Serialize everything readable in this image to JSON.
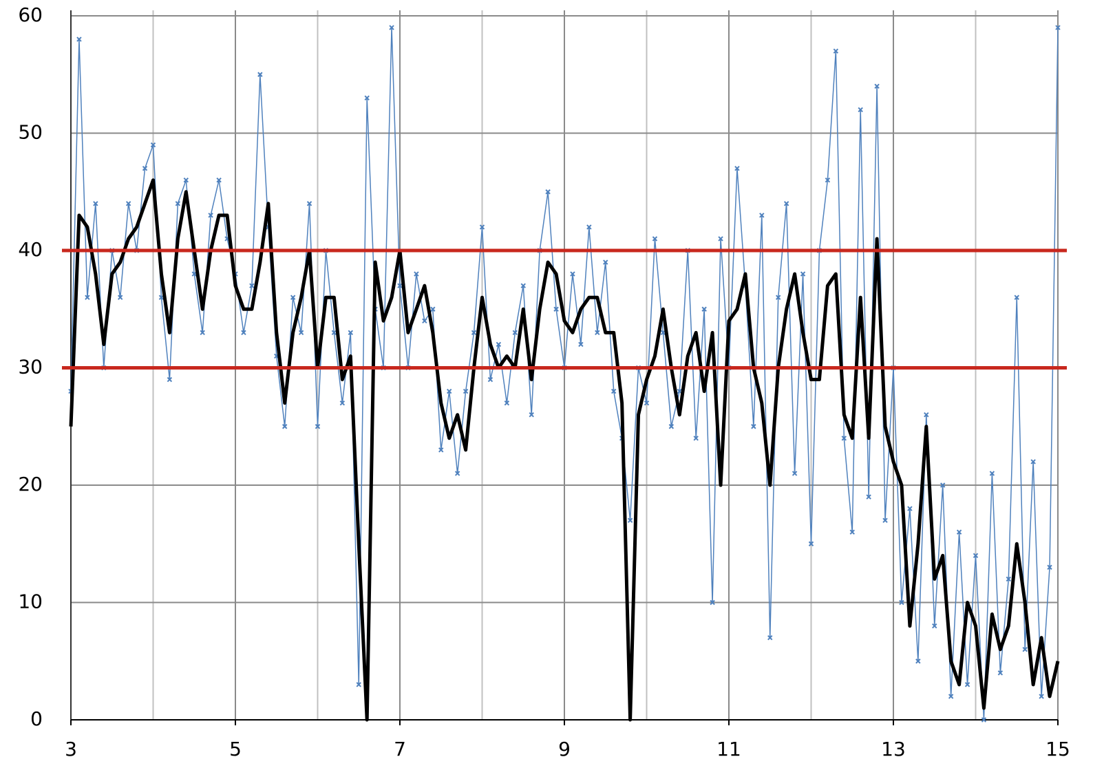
{
  "chart_data": {
    "type": "line",
    "x": [
      3,
      3.1,
      3.2,
      3.3,
      3.4,
      3.5,
      3.6,
      3.7,
      3.8,
      3.9,
      4,
      4.1,
      4.2,
      4.3,
      4.4,
      4.5,
      4.6,
      4.7,
      4.8,
      4.9,
      5,
      5.1,
      5.2,
      5.3,
      5.4,
      5.5,
      5.6,
      5.7,
      5.8,
      5.9,
      6,
      6.1,
      6.2,
      6.3,
      6.4,
      6.5,
      6.6,
      6.7,
      6.8,
      6.9,
      7,
      7.1,
      7.2,
      7.3,
      7.4,
      7.5,
      7.6,
      7.7,
      7.8,
      7.9,
      8,
      8.1,
      8.2,
      8.3,
      8.4,
      8.5,
      8.6,
      8.7,
      8.8,
      8.9,
      9,
      9.1,
      9.2,
      9.3,
      9.4,
      9.5,
      9.6,
      9.7,
      9.8,
      9.9,
      10,
      10.1,
      10.2,
      10.3,
      10.4,
      10.5,
      10.6,
      10.7,
      10.8,
      10.9,
      11,
      11.1,
      11.2,
      11.3,
      11.4,
      11.5,
      11.6,
      11.7,
      11.8,
      11.9,
      12,
      12.1,
      12.2,
      12.3,
      12.4,
      12.5,
      12.6,
      12.7,
      12.8,
      12.9,
      13,
      13.1,
      13.2,
      13.3,
      13.4,
      13.5,
      13.6,
      13.7,
      13.8,
      13.9,
      14,
      14.1,
      14.2,
      14.3,
      14.4,
      14.5,
      14.6,
      14.7,
      14.8,
      14.9,
      15
    ],
    "series": [
      {
        "color": "#4f81bd",
        "markers": true,
        "width": 1.5,
        "values": [
          28,
          58,
          36,
          44,
          30,
          40,
          36,
          44,
          40,
          47,
          49,
          36,
          29,
          44,
          46,
          38,
          33,
          43,
          46,
          41,
          38,
          33,
          37,
          55,
          42,
          31,
          25,
          36,
          33,
          44,
          25,
          40,
          33,
          27,
          33,
          3,
          53,
          35,
          30,
          59,
          37,
          30,
          38,
          34,
          35,
          23,
          28,
          21,
          28,
          33,
          42,
          29,
          32,
          27,
          33,
          37,
          26,
          40,
          45,
          35,
          30,
          38,
          32,
          42,
          33,
          39,
          28,
          24,
          17,
          30,
          27,
          41,
          33,
          25,
          28,
          40,
          24,
          35,
          10,
          41,
          30,
          47,
          37,
          25,
          43,
          7,
          36,
          44,
          21,
          38,
          15,
          40,
          46,
          57,
          24,
          16,
          52,
          19,
          54,
          17,
          30,
          10,
          18,
          5,
          26,
          8,
          20,
          2,
          16,
          3,
          14,
          0,
          21,
          4,
          12,
          36,
          6,
          22,
          2,
          13,
          59
        ]
      },
      {
        "color": "#000000",
        "markers": false,
        "width": 5,
        "values": [
          25,
          43,
          42,
          38,
          32,
          38,
          39,
          41,
          42,
          44,
          46,
          38,
          33,
          41,
          45,
          40,
          35,
          40,
          43,
          43,
          37,
          35,
          35,
          39,
          44,
          33,
          27,
          33,
          36,
          40,
          30,
          36,
          36,
          29,
          31,
          15,
          0,
          39,
          34,
          36,
          40,
          33,
          35,
          37,
          33,
          27,
          24,
          26,
          23,
          30,
          36,
          32,
          30,
          31,
          30,
          35,
          29,
          35,
          39,
          38,
          34,
          33,
          35,
          36,
          36,
          33,
          33,
          27,
          0,
          26,
          29,
          31,
          35,
          30,
          26,
          31,
          33,
          28,
          33,
          20,
          34,
          35,
          38,
          30,
          27,
          20,
          30,
          35,
          38,
          33,
          29,
          29,
          37,
          38,
          26,
          24,
          36,
          24,
          41,
          25,
          22,
          20,
          8,
          15,
          25,
          12,
          14,
          5,
          3,
          10,
          8,
          1,
          9,
          6,
          8,
          15,
          10,
          3,
          7,
          2,
          5
        ]
      }
    ],
    "xlim": [
      3,
      15
    ],
    "xticks": [
      3,
      5,
      7,
      9,
      11,
      13,
      15
    ],
    "x_minor_grid": [
      4,
      6,
      8,
      10,
      12,
      14
    ],
    "ylim": [
      0,
      60
    ],
    "yticks": [
      0,
      10,
      20,
      30,
      40,
      50,
      60
    ],
    "grid": true,
    "hlines": [
      30,
      40
    ],
    "hline_color": "#c8281e"
  }
}
